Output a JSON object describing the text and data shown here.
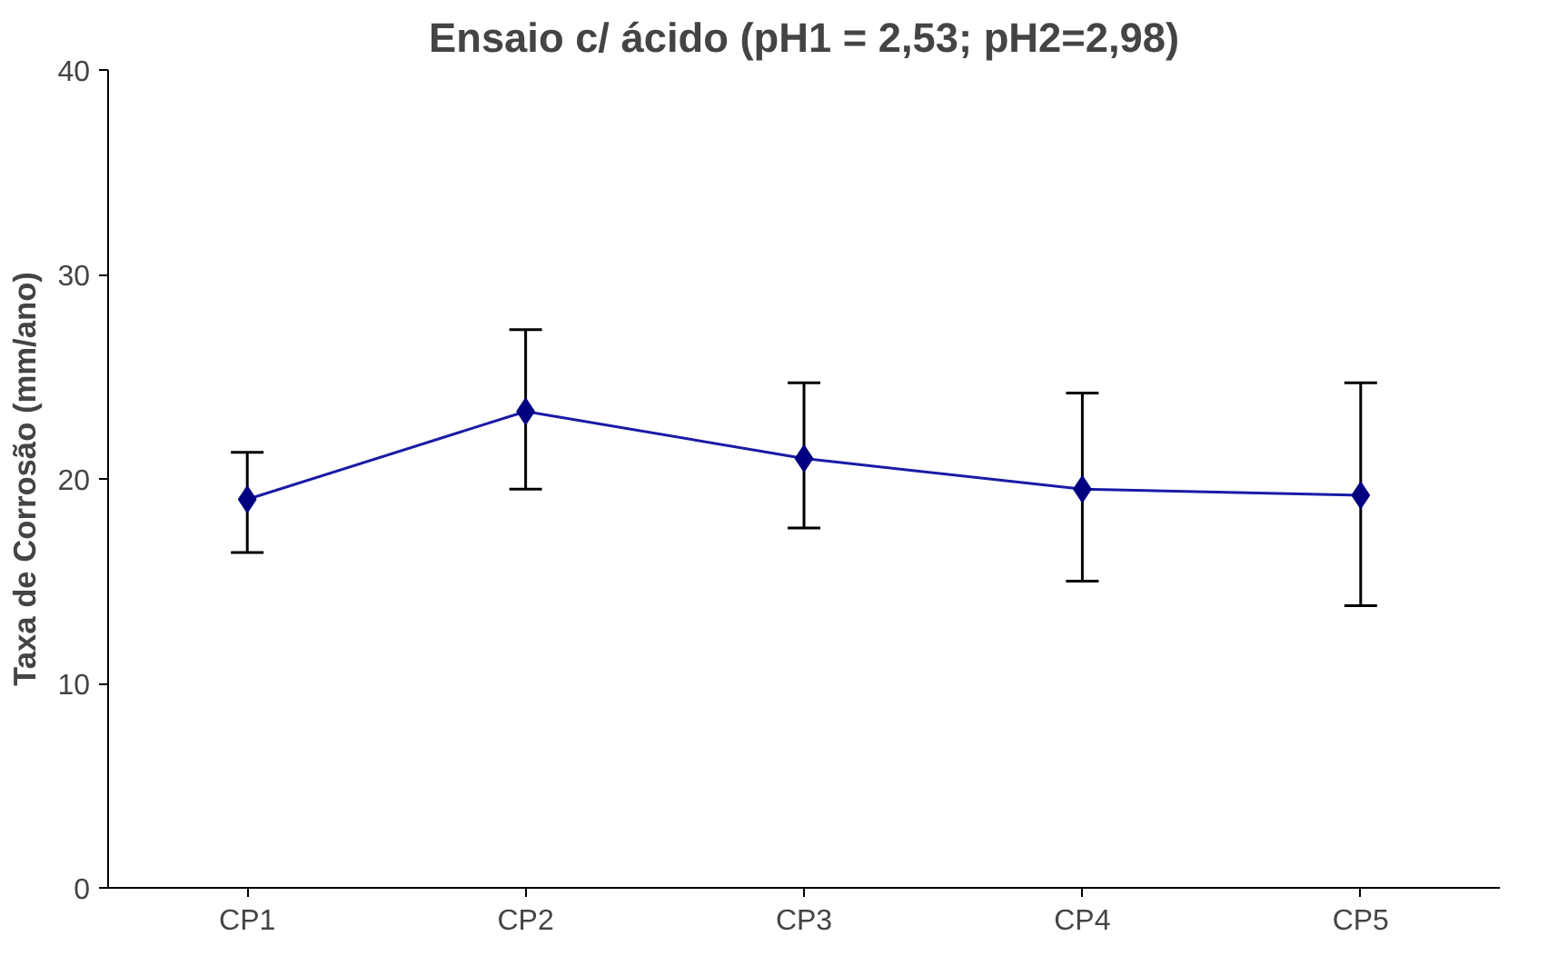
{
  "chart_data": {
    "type": "line",
    "title": "Ensaio c/ ácido (pH1 = 2,53; pH2=2,98)",
    "ylabel": "Taxa de Corrosão (mm/ano)",
    "categories": [
      "CP1",
      "CP2",
      "CP3",
      "CP4",
      "CP5"
    ],
    "series": [
      {
        "color": "#1a1aa6",
        "values": [
          19.0,
          23.3,
          21.0,
          19.5,
          19.2
        ],
        "errors": [
          [
            16.4,
            21.3
          ],
          [
            19.5,
            27.3
          ],
          [
            17.6,
            24.7
          ],
          [
            15.0,
            24.2
          ],
          [
            13.8,
            24.7
          ]
        ]
      }
    ],
    "ylim": [
      0,
      40
    ],
    "yticks": [
      0,
      10,
      20,
      30,
      40
    ],
    "grid": false,
    "marker": "diamond",
    "line_style": "solid"
  }
}
